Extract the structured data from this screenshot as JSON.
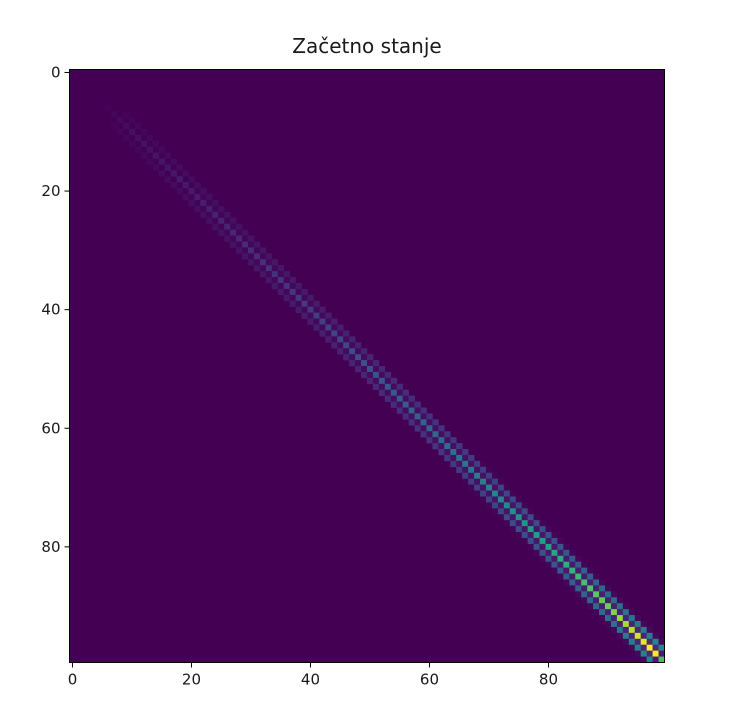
{
  "chart_data": {
    "type": "heatmap",
    "title": "Začetno stanje",
    "xlabel": "",
    "ylabel": "",
    "rows": 100,
    "cols": 100,
    "x_ticks": [
      0,
      20,
      40,
      60,
      80
    ],
    "y_ticks": [
      0,
      20,
      40,
      60,
      80
    ],
    "x_tick_labels": [
      "0",
      "20",
      "40",
      "60",
      "80"
    ],
    "y_tick_labels": [
      "0",
      "20",
      "40",
      "60",
      "80"
    ],
    "xlim": [
      -0.5,
      99.5
    ],
    "ylim": [
      99.5,
      -0.5
    ],
    "y_axis_inverted": true,
    "colormap": "viridis",
    "colorbar": false,
    "value_range": [
      0,
      1
    ],
    "pattern": "diagonal band of width ~3 cells around i=j with a checkerboard of alternating high/low values; intensity grows toward the bottom-right, peaking near (97, 97)",
    "diagonal_peak_values_by_index": [
      {
        "index": 10,
        "value": 0.04
      },
      {
        "index": 20,
        "value": 0.08
      },
      {
        "index": 30,
        "value": 0.13
      },
      {
        "index": 40,
        "value": 0.18
      },
      {
        "index": 50,
        "value": 0.25
      },
      {
        "index": 60,
        "value": 0.33
      },
      {
        "index": 70,
        "value": 0.44
      },
      {
        "index": 80,
        "value": 0.58
      },
      {
        "index": 90,
        "value": 0.78
      },
      {
        "index": 97,
        "value": 1.0
      }
    ],
    "colors": {
      "background": "#440154",
      "axes_edge": "#000000"
    }
  }
}
